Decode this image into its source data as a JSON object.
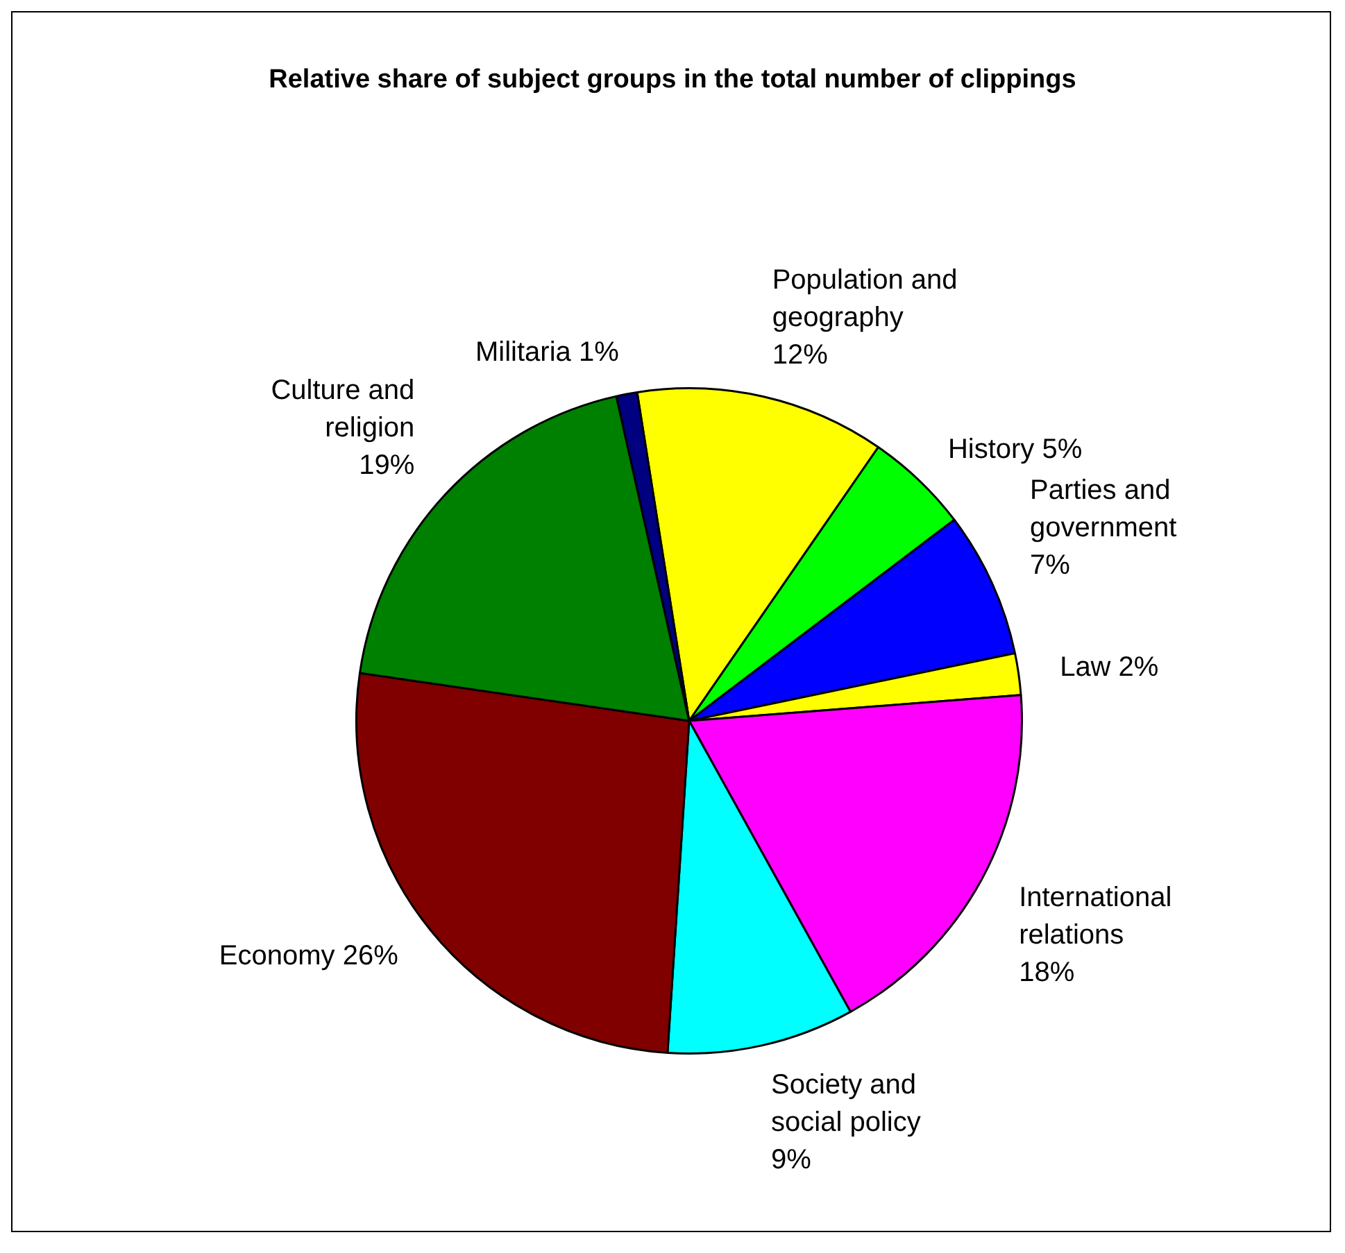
{
  "chart_data": {
    "type": "pie",
    "title": "Relative share of subject groups in the total number of clippings",
    "categories": [
      "Population and geography",
      "History",
      "Parties and government",
      "Law",
      "International relations",
      "Society and social policy",
      "Economy",
      "Culture and religion",
      "Militaria"
    ],
    "values": [
      12,
      5,
      7,
      2,
      18,
      9,
      26,
      19,
      1
    ],
    "colors": [
      "#ffff00",
      "#00ff00",
      "#0000ff",
      "#ffff00",
      "#ff00ff",
      "#00ffff",
      "#800000",
      "#008000",
      "#000080"
    ],
    "value_labels": [
      "12%",
      "5%",
      "7%",
      "2%",
      "18%",
      "9%",
      "26%",
      "19%",
      "1%"
    ],
    "legend": false
  }
}
